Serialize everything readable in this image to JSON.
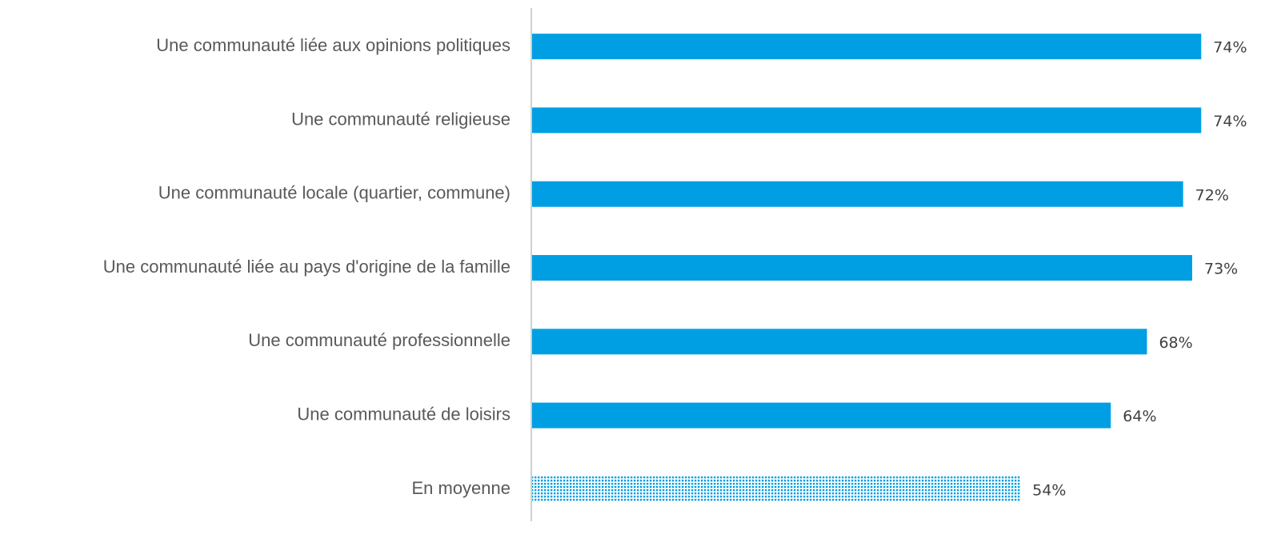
{
  "chart_data": {
    "type": "barh",
    "categories": [
      "Une communauté liée aux opinions politiques",
      "Une communauté religieuse",
      "Une communauté locale (quartier, commune)",
      "Une communauté liée au pays d'origine de la famille",
      "Une communauté professionnelle",
      "Une communauté de loisirs",
      "En moyenne"
    ],
    "values": [
      74,
      74,
      72,
      73,
      68,
      64,
      54
    ],
    "value_labels": [
      "74%",
      "74%",
      "72%",
      "73%",
      "68%",
      "64%",
      "54%"
    ],
    "color": "#009fe3",
    "bar_styles": [
      "solid",
      "solid",
      "solid",
      "solid",
      "solid",
      "solid",
      "dotted"
    ],
    "xlim": [
      0,
      83
    ]
  }
}
